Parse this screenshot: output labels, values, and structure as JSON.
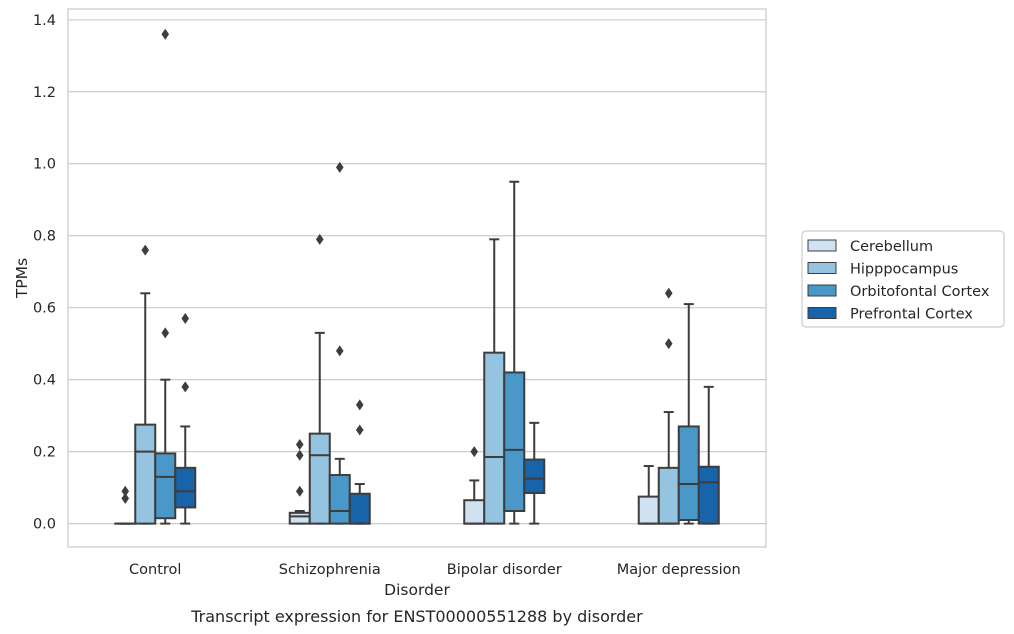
{
  "caption": "Transcript expression for ENST00000551288 by disorder",
  "chart_data": {
    "type": "box",
    "xlabel": "Disorder",
    "ylabel": "TPMs",
    "ylim": [
      -0.065,
      1.43
    ],
    "yticks": [
      0.0,
      0.2,
      0.4,
      0.6,
      0.8,
      1.0,
      1.2,
      1.4
    ],
    "ytick_labels": [
      "0.0",
      "0.2",
      "0.4",
      "0.6",
      "0.8",
      "1.0",
      "1.2",
      "1.4"
    ],
    "grid": "horizontal",
    "legend_position": "right",
    "categories": [
      "Control",
      "Schizophrenia",
      "Bipolar disorder",
      "Major depression"
    ],
    "series": [
      {
        "name": "Cerebellum",
        "color": "#d0e1f2",
        "boxes": [
          {
            "whislo": 0.0,
            "q1": 0.0,
            "med": 0.0,
            "q3": 0.0,
            "whishi": 0.0,
            "fliers": [
              0.07,
              0.09
            ]
          },
          {
            "whislo": 0.0,
            "q1": 0.0,
            "med": 0.02,
            "q3": 0.03,
            "whishi": 0.035,
            "fliers": [
              0.09,
              0.19,
              0.22
            ]
          },
          {
            "whislo": 0.0,
            "q1": 0.0,
            "med": 0.0,
            "q3": 0.065,
            "whishi": 0.12,
            "fliers": [
              0.2
            ]
          },
          {
            "whislo": 0.0,
            "q1": 0.0,
            "med": 0.0,
            "q3": 0.075,
            "whishi": 0.16,
            "fliers": []
          }
        ]
      },
      {
        "name": "Hipppocampus",
        "color": "#94c4df",
        "boxes": [
          {
            "whislo": 0.0,
            "q1": 0.0,
            "med": 0.2,
            "q3": 0.275,
            "whishi": 0.64,
            "fliers": [
              0.76
            ]
          },
          {
            "whislo": 0.0,
            "q1": 0.0,
            "med": 0.19,
            "q3": 0.25,
            "whishi": 0.53,
            "fliers": [
              0.79
            ]
          },
          {
            "whislo": 0.0,
            "q1": 0.0,
            "med": 0.185,
            "q3": 0.475,
            "whishi": 0.79,
            "fliers": []
          },
          {
            "whislo": 0.0,
            "q1": 0.0,
            "med": 0.0,
            "q3": 0.155,
            "whishi": 0.31,
            "fliers": [
              0.5,
              0.64
            ]
          }
        ]
      },
      {
        "name": "Orbitofontal Cortex",
        "color": "#4a98c9",
        "boxes": [
          {
            "whislo": 0.0,
            "q1": 0.015,
            "med": 0.13,
            "q3": 0.195,
            "whishi": 0.4,
            "fliers": [
              0.53,
              1.36
            ]
          },
          {
            "whislo": 0.0,
            "q1": 0.0,
            "med": 0.035,
            "q3": 0.135,
            "whishi": 0.18,
            "fliers": [
              0.48,
              0.99
            ]
          },
          {
            "whislo": 0.0,
            "q1": 0.035,
            "med": 0.205,
            "q3": 0.42,
            "whishi": 0.95,
            "fliers": []
          },
          {
            "whislo": 0.0,
            "q1": 0.01,
            "med": 0.11,
            "q3": 0.27,
            "whishi": 0.61,
            "fliers": []
          }
        ]
      },
      {
        "name": "Prefrontal Cortex",
        "color": "#1764ab",
        "boxes": [
          {
            "whislo": 0.0,
            "q1": 0.045,
            "med": 0.09,
            "q3": 0.155,
            "whishi": 0.27,
            "fliers": [
              0.38,
              0.57
            ]
          },
          {
            "whislo": 0.0,
            "q1": 0.0,
            "med": 0.0,
            "q3": 0.083,
            "whishi": 0.11,
            "fliers": [
              0.26,
              0.33
            ]
          },
          {
            "whislo": 0.0,
            "q1": 0.085,
            "med": 0.125,
            "q3": 0.178,
            "whishi": 0.28,
            "fliers": []
          },
          {
            "whislo": 0.0,
            "q1": 0.0,
            "med": 0.115,
            "q3": 0.158,
            "whishi": 0.38,
            "fliers": []
          }
        ]
      }
    ]
  }
}
